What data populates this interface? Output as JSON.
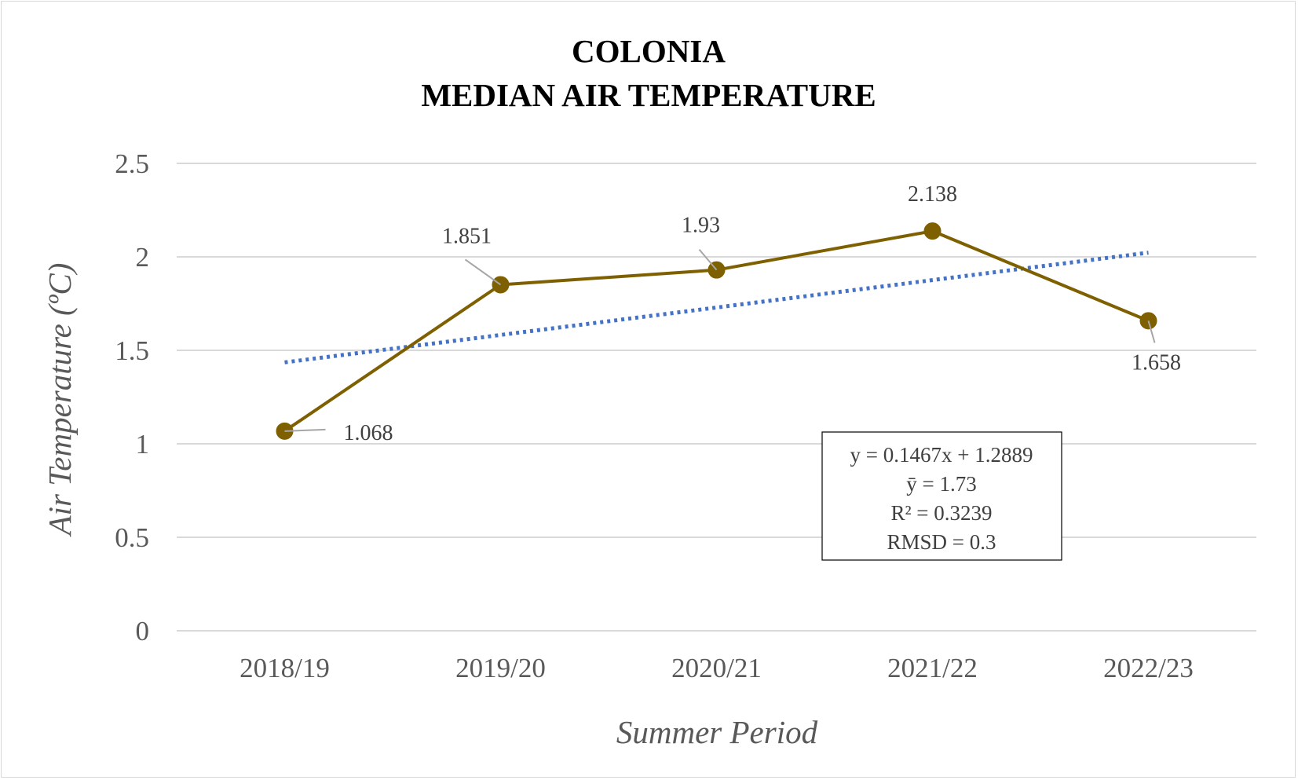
{
  "chart_data": {
    "type": "line",
    "title_lines": [
      "COLONIA",
      "MEDIAN AIR TEMPERATURE"
    ],
    "xlabel": "Summer Period",
    "ylabel": "Air Temperature (ºC)",
    "categories": [
      "2018/19",
      "2019/20",
      "2020/21",
      "2021/22",
      "2022/23"
    ],
    "series": [
      {
        "values": [
          1.068,
          1.851,
          1.93,
          2.138,
          1.658
        ],
        "color": "#7f6000"
      }
    ],
    "data_labels": [
      "1.068",
      "1.851",
      "1.93",
      "2.138",
      "1.658"
    ],
    "trendline": {
      "type": "linear",
      "slope": 0.1467,
      "intercept": 1.2889,
      "style": "dotted",
      "color": "#4472c4"
    },
    "ylim": [
      0,
      2.5
    ],
    "yticks": [
      "0",
      "0.5",
      "1",
      "1.5",
      "2",
      "2.5"
    ],
    "grid": "horizontal",
    "stats_box": {
      "lines": [
        "y = 0.1467x + 1.2889",
        "ȳ = 1.73",
        "R² = 0.3239",
        "RMSD = 0.3"
      ]
    }
  }
}
